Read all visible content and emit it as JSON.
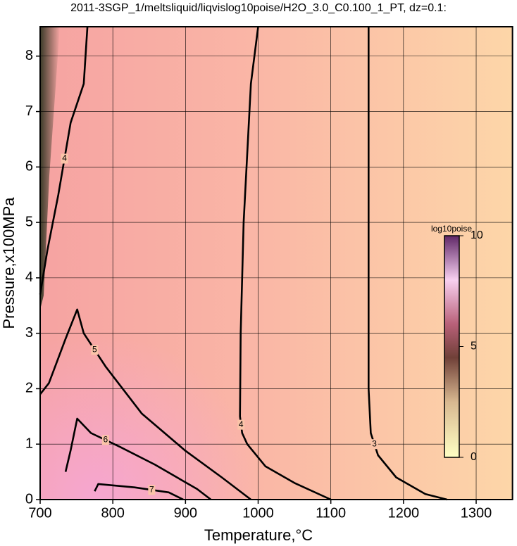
{
  "chart_data": {
    "type": "contour",
    "title": "2011-3SGP_1/meltsliquid/liqvislog10poise/H2O_3.0_C0.100_1_PT, dz=0.1:",
    "x_label": "Temperature,°C",
    "y_label": "Pressure,x100MPa",
    "xlim": [
      700,
      1350
    ],
    "ylim": [
      0,
      8.53
    ],
    "xticks": [
      700,
      800,
      900,
      1000,
      1100,
      1200,
      1300
    ],
    "yticks": [
      0,
      1,
      2,
      3,
      4,
      5,
      6,
      7,
      8
    ],
    "grid": true,
    "contours": [
      {
        "level": 3,
        "x": [
          1152,
          1152,
          1152,
          1155,
          1165,
          1190,
          1230,
          1260
        ],
        "y": [
          8.53,
          5,
          2,
          1.2,
          0.8,
          0.4,
          0.1,
          0
        ]
      },
      {
        "level": 4,
        "x": [
          1000,
          990,
          980,
          976,
          975,
          978,
          985,
          1010,
          1050,
          1100
        ],
        "y": [
          8.53,
          7.5,
          5,
          3,
          1.5,
          1.2,
          1,
          0.6,
          0.3,
          0
        ]
      },
      {
        "level": 4,
        "x": [
          765,
          760,
          742,
          725,
          710,
          700
        ],
        "y": [
          8.53,
          7.5,
          6.8,
          5.5,
          4.5,
          3.7
        ]
      },
      {
        "level": 5,
        "x": [
          700,
          712,
          735,
          751,
          760,
          790,
          840,
          900,
          950,
          990
        ],
        "y": [
          1.9,
          2.1,
          2.9,
          3.43,
          3.0,
          2.4,
          1.55,
          0.88,
          0.4,
          0
        ]
      },
      {
        "level": 6,
        "x": [
          735,
          742,
          751,
          770,
          810,
          858,
          916,
          935
        ],
        "y": [
          0.5,
          0.89,
          1.46,
          1.2,
          0.95,
          0.63,
          0.19,
          0
        ]
      },
      {
        "level": 7,
        "x": [
          775,
          780,
          830,
          877,
          897
        ],
        "y": [
          0.15,
          0.28,
          0.22,
          0.13,
          0
        ]
      }
    ],
    "colorbar": {
      "label": "log10poise",
      "lim": [
        0,
        10
      ],
      "ticks": [
        0,
        5,
        10
      ]
    }
  }
}
